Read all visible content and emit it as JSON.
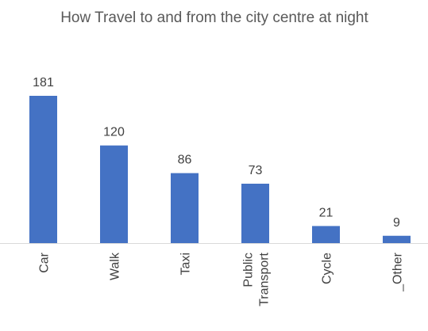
{
  "chart_data": {
    "type": "bar",
    "title": "How Travel to and from the city centre at night",
    "categories": [
      "Car",
      "Walk",
      "Taxi",
      "Public Transport",
      "Cycle",
      "_Other"
    ],
    "values": [
      181,
      120,
      86,
      73,
      21,
      9
    ],
    "color": "#4472c4"
  }
}
